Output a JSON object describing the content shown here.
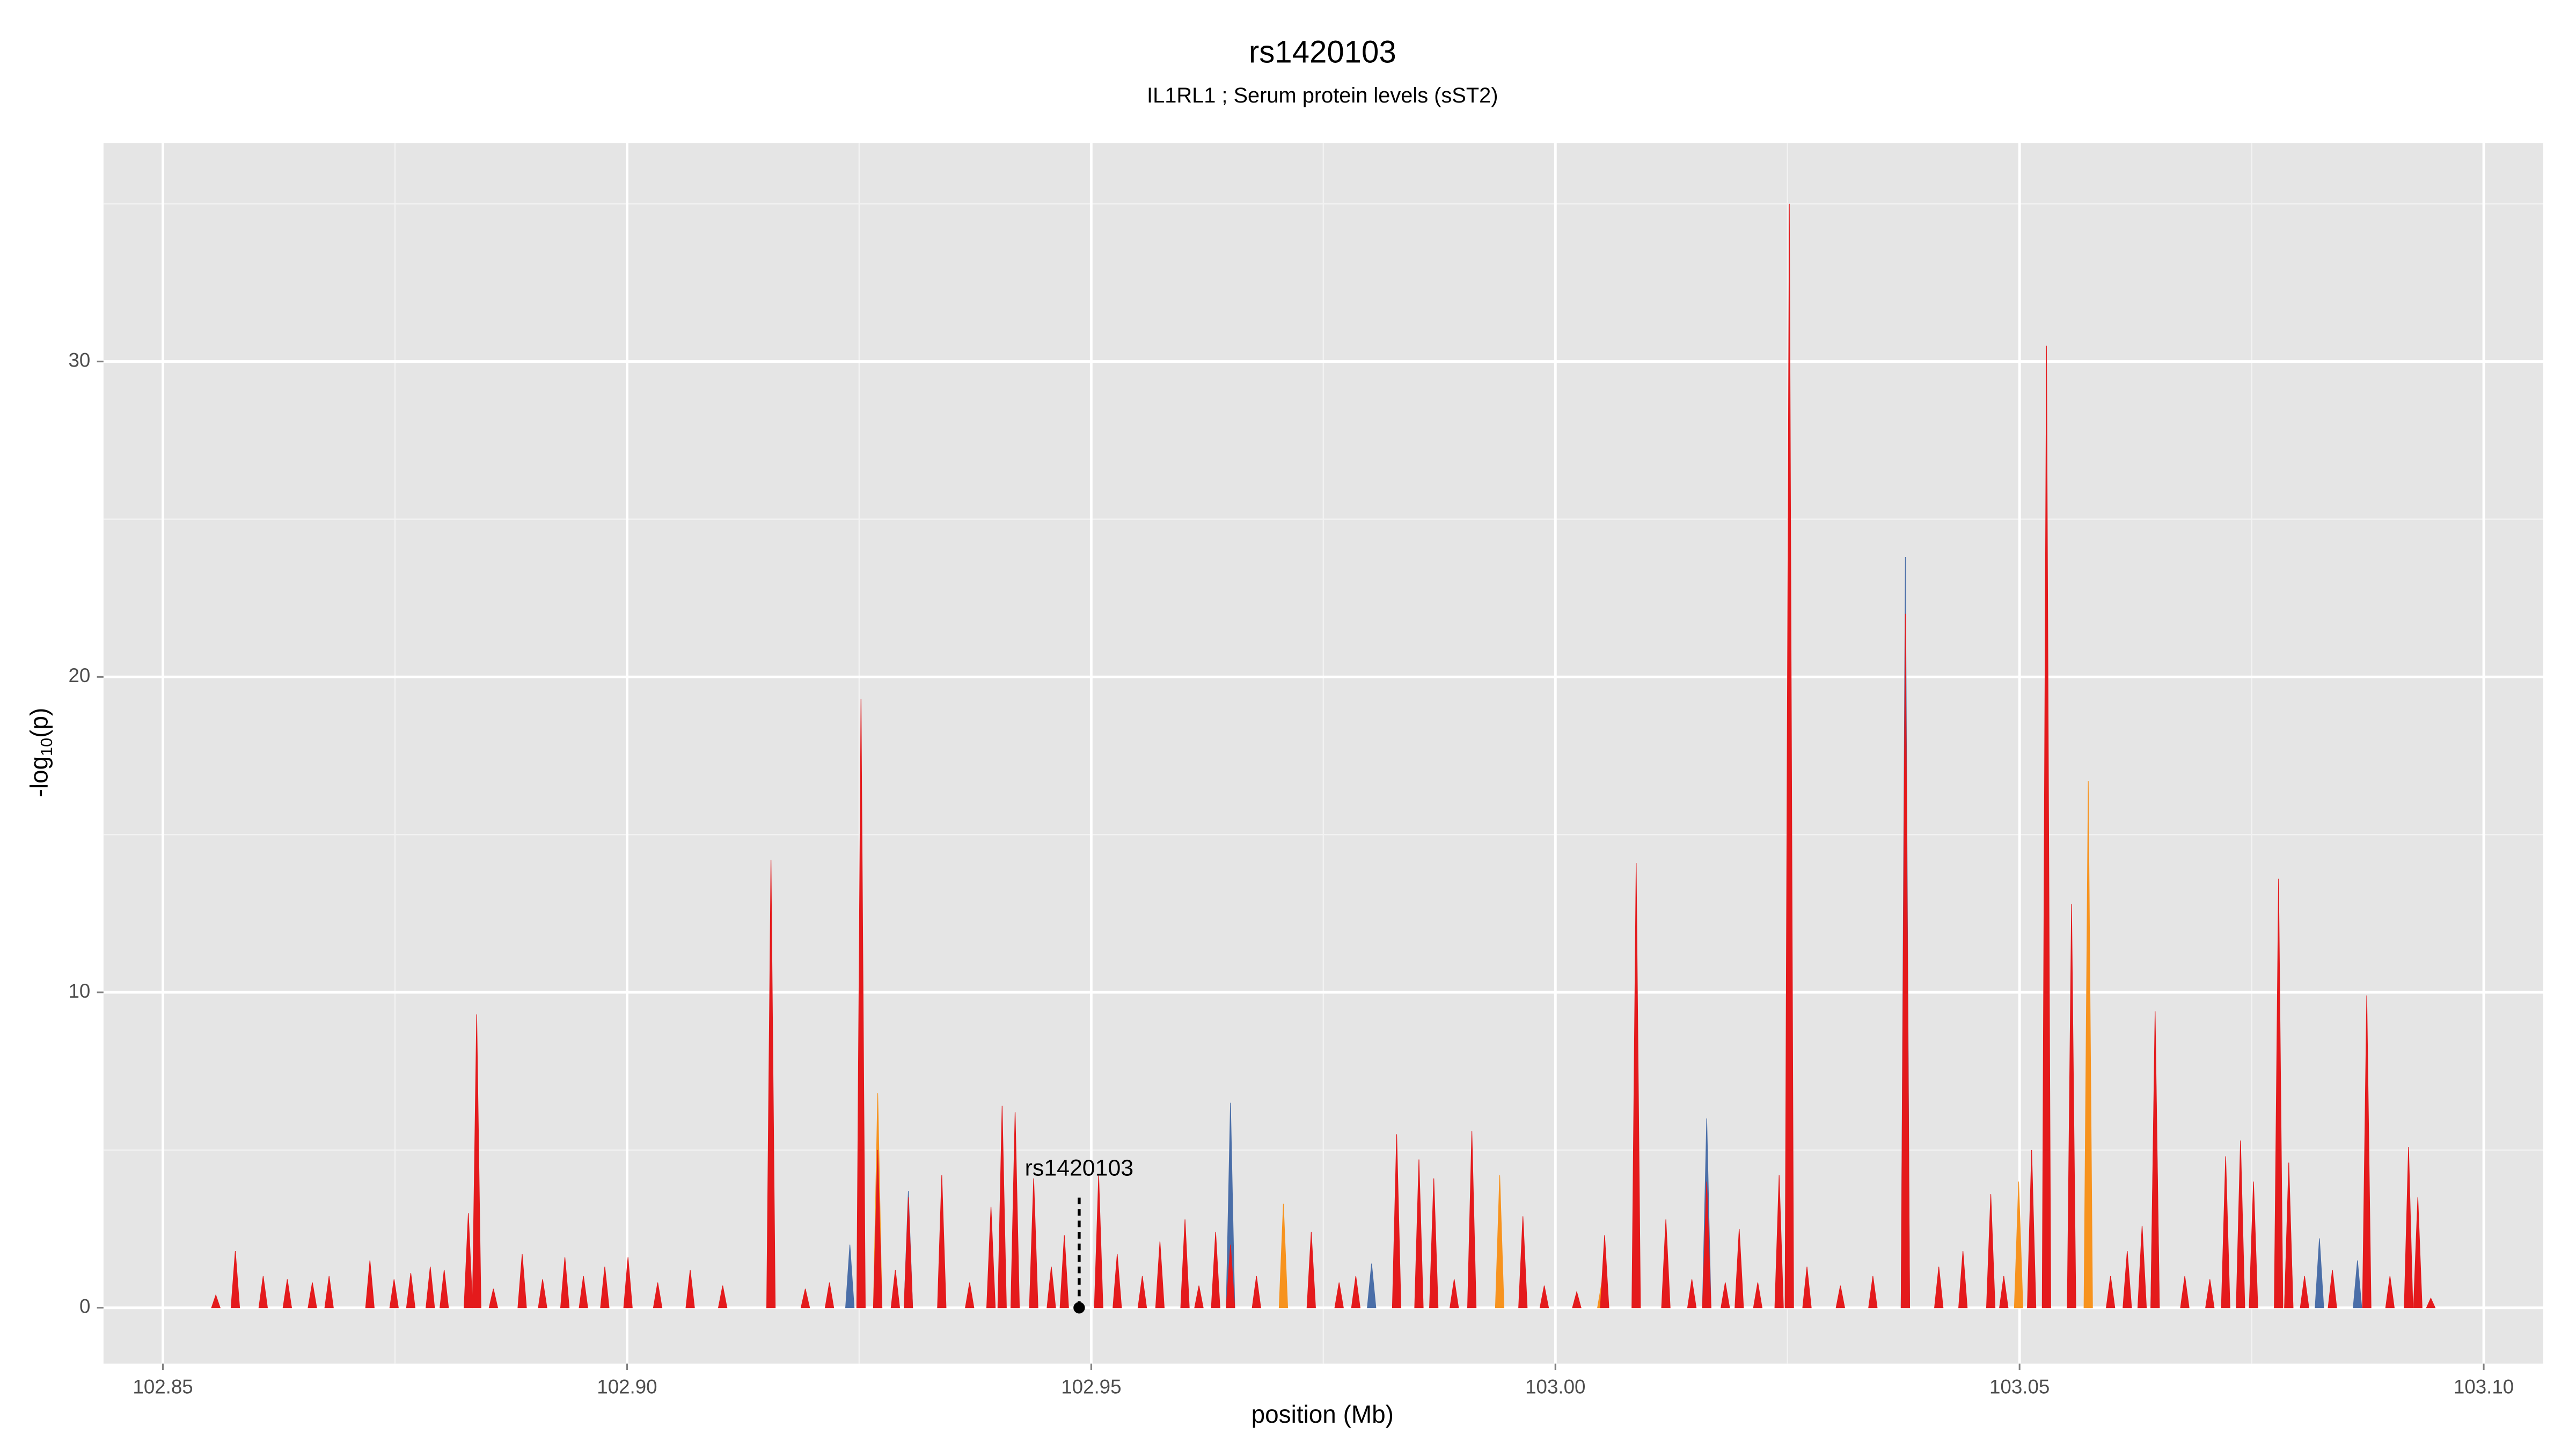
{
  "chart_data": {
    "type": "spikes",
    "title": "rs1420103",
    "subtitle": "IL1RL1 ; Serum protein levels (sST2)",
    "xlabel": "position (Mb)",
    "ylabel": [
      "-log",
      "10",
      "(p)"
    ],
    "xlim": [
      102.8436,
      103.1064
    ],
    "ylim": [
      -1.77,
      36.93
    ],
    "xticks": [
      102.85,
      {
        "value": 102.9,
        "label": "102.90"
      },
      102.95,
      {
        "value": 103,
        "label": "103.00"
      },
      103.05,
      {
        "value": 103.1,
        "label": "103.10"
      }
    ],
    "yticks": [
      0,
      10,
      20,
      30
    ],
    "grid": true,
    "series": [
      {
        "color": "#4a6ea8",
        "x": [
          102.924,
          102.9303,
          102.965,
          102.9802,
          103.0163,
          103.0377,
          103.0646,
          103.0823,
          103.0864
        ],
        "values": [
          2.0,
          3.7,
          6.5,
          1.4,
          6.0,
          23.8,
          9.0,
          2.2,
          1.5
        ]
      },
      {
        "color": "#f7931e",
        "x": [
          102.927,
          102.9707,
          102.994,
          103.005,
          103.0499,
          103.0574,
          103.0779,
          103.079
        ],
        "values": [
          6.8,
          3.3,
          4.2,
          0.8,
          4.0,
          16.7,
          12.0,
          4.4
        ]
      },
      {
        "color": "#e41a1c",
        "x": [
          102.8557,
          102.8578,
          102.8608,
          102.8634,
          102.8661,
          102.8679,
          102.8723,
          102.8749,
          102.8767,
          102.8788,
          102.8803,
          102.8829,
          102.8838,
          102.8856,
          102.8887,
          102.8909,
          102.8933,
          102.8953,
          102.8976,
          102.9001,
          102.9033,
          102.9068,
          102.9103,
          102.9155,
          102.9192,
          102.9218,
          102.9252,
          102.927,
          102.9289,
          102.9303,
          102.9339,
          102.9369,
          102.9392,
          102.9404,
          102.9418,
          102.9438,
          102.9457,
          102.9471,
          102.9508,
          102.9528,
          102.9555,
          102.9574,
          102.9601,
          102.9616,
          102.9634,
          102.965,
          102.9678,
          102.9737,
          102.9767,
          102.9785,
          102.9829,
          102.9853,
          102.9869,
          102.9891,
          102.991,
          102.9965,
          102.9988,
          103.0023,
          103.0053,
          103.0087,
          103.0119,
          103.0147,
          103.0163,
          103.0183,
          103.0198,
          103.0218,
          103.0241,
          103.0252,
          103.0271,
          103.0307,
          103.0342,
          103.0377,
          103.0413,
          103.0439,
          103.0469,
          103.0483,
          103.0513,
          103.0529,
          103.0556,
          103.0598,
          103.0616,
          103.0632,
          103.0646,
          103.0678,
          103.0705,
          103.0722,
          103.0738,
          103.0752,
          103.0779,
          103.079,
          103.0807,
          103.0837,
          103.0874,
          103.0899,
          103.0919,
          103.0929,
          103.0943
        ],
        "values": [
          0.4,
          1.8,
          1.0,
          0.9,
          0.8,
          1.0,
          1.5,
          0.9,
          1.1,
          1.3,
          1.2,
          3.0,
          9.3,
          0.6,
          1.7,
          0.9,
          1.6,
          1.0,
          1.3,
          1.6,
          0.8,
          1.2,
          0.7,
          14.2,
          0.6,
          0.8,
          19.3,
          5.0,
          1.2,
          3.5,
          4.2,
          0.8,
          3.2,
          6.4,
          6.2,
          4.1,
          1.3,
          2.3,
          4.2,
          1.7,
          1.0,
          2.1,
          2.8,
          0.7,
          2.4,
          2.0,
          1.0,
          2.4,
          0.8,
          1.0,
          5.5,
          4.7,
          4.1,
          0.9,
          5.6,
          2.9,
          0.7,
          0.5,
          2.3,
          14.1,
          2.8,
          0.9,
          4.0,
          0.8,
          2.5,
          0.8,
          4.2,
          35.0,
          1.3,
          0.7,
          1.0,
          22.0,
          1.3,
          1.8,
          3.6,
          1.0,
          5.0,
          30.5,
          12.8,
          1.0,
          1.8,
          2.6,
          9.4,
          1.0,
          0.9,
          4.8,
          5.3,
          4.0,
          13.6,
          4.6,
          1.0,
          1.2,
          9.9,
          1.0,
          5.1,
          3.5,
          0.3
        ]
      }
    ],
    "annotation": {
      "label": "rs1420103",
      "x": 102.9487,
      "line_top": 3.5,
      "point_y": 0
    }
  }
}
